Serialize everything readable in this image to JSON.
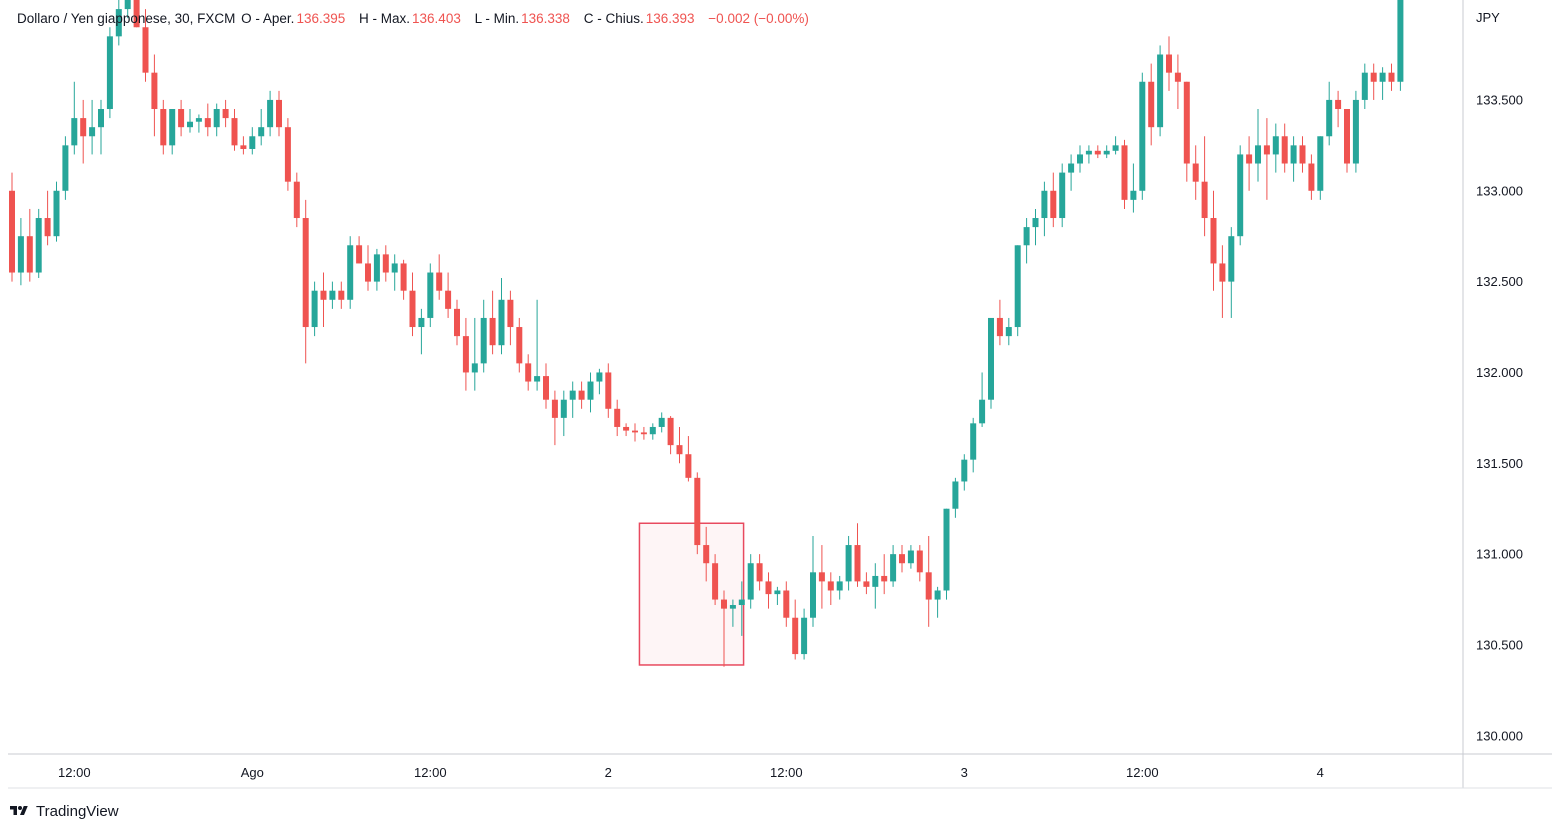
{
  "legend": {
    "symbol": "Dollaro / Yen giapponese, 30, FXCM",
    "open_label": "O - Aper.",
    "open_value": "136.395",
    "high_label": "H - Max.",
    "high_value": "136.403",
    "low_label": "L - Min.",
    "low_value": "136.338",
    "close_label": "C - Chius.",
    "close_value": "136.393",
    "change": "−0.002 (−0.00%)"
  },
  "currency": "JPY",
  "branding": {
    "name": "TradingView",
    "logo_icon": "tradingview-logo-icon"
  },
  "colors": {
    "up": "#26a69a",
    "down": "#ef5350",
    "box_stroke": "#e84a5f",
    "box_fill": "#fdecee"
  },
  "chart_data": {
    "type": "candlestick",
    "timeframe": "30",
    "y_axis": {
      "range": [
        129.9,
        134.05
      ],
      "ticks": [
        {
          "value": 133.5,
          "label": "133.500"
        },
        {
          "value": 133.0,
          "label": "133.000"
        },
        {
          "value": 132.5,
          "label": "132.500"
        },
        {
          "value": 132.0,
          "label": "132.000"
        },
        {
          "value": 131.5,
          "label": "131.500"
        },
        {
          "value": 131.0,
          "label": "131.000"
        },
        {
          "value": 130.5,
          "label": "130.500"
        },
        {
          "value": 130.0,
          "label": "130.000"
        }
      ]
    },
    "x_axis": {
      "bar_range": [
        0,
        162
      ],
      "ticks": [
        {
          "bar": 7,
          "label": "12:00"
        },
        {
          "bar": 27,
          "label": "Ago"
        },
        {
          "bar": 47,
          "label": "12:00"
        },
        {
          "bar": 67,
          "label": "2"
        },
        {
          "bar": 87,
          "label": "12:00"
        },
        {
          "bar": 107,
          "label": "3"
        },
        {
          "bar": 127,
          "label": "12:00"
        },
        {
          "bar": 147,
          "label": "4"
        }
      ]
    },
    "highlight_box": {
      "bar_from": 70.5,
      "bar_to": 82.2,
      "price_low": 130.39,
      "price_high": 131.17
    },
    "candles": [
      [
        133.0,
        133.1,
        132.5,
        132.55
      ],
      [
        132.55,
        132.85,
        132.48,
        132.75
      ],
      [
        132.75,
        132.9,
        132.5,
        132.55
      ],
      [
        132.55,
        132.9,
        132.52,
        132.85
      ],
      [
        132.85,
        133.0,
        132.7,
        132.75
      ],
      [
        132.75,
        133.05,
        132.72,
        133.0
      ],
      [
        133.0,
        133.3,
        132.95,
        133.25
      ],
      [
        133.25,
        133.6,
        133.2,
        133.4
      ],
      [
        133.4,
        133.5,
        133.15,
        133.3
      ],
      [
        133.3,
        133.5,
        133.2,
        133.35
      ],
      [
        133.35,
        133.5,
        133.2,
        133.45
      ],
      [
        133.45,
        133.9,
        133.4,
        133.85
      ],
      [
        133.85,
        134.1,
        133.8,
        134.0
      ],
      [
        134.0,
        134.1,
        133.95,
        134.05
      ],
      [
        134.05,
        134.08,
        133.9,
        133.9
      ],
      [
        133.9,
        134.0,
        133.6,
        133.65
      ],
      [
        133.65,
        133.75,
        133.3,
        133.45
      ],
      [
        133.45,
        133.5,
        133.2,
        133.25
      ],
      [
        133.25,
        133.45,
        133.2,
        133.45
      ],
      [
        133.45,
        133.5,
        133.3,
        133.35
      ],
      [
        133.35,
        133.45,
        133.32,
        133.38
      ],
      [
        133.38,
        133.42,
        133.32,
        133.4
      ],
      [
        133.4,
        133.48,
        133.3,
        133.35
      ],
      [
        133.35,
        133.48,
        133.3,
        133.45
      ],
      [
        133.45,
        133.5,
        133.35,
        133.4
      ],
      [
        133.4,
        133.45,
        133.22,
        133.25
      ],
      [
        133.25,
        133.3,
        133.2,
        133.23
      ],
      [
        133.23,
        133.35,
        133.2,
        133.3
      ],
      [
        133.3,
        133.45,
        133.25,
        133.35
      ],
      [
        133.35,
        133.55,
        133.3,
        133.5
      ],
      [
        133.5,
        133.55,
        133.3,
        133.35
      ],
      [
        133.35,
        133.4,
        133.0,
        133.05
      ],
      [
        133.05,
        133.1,
        132.8,
        132.85
      ],
      [
        132.85,
        132.95,
        132.05,
        132.25
      ],
      [
        132.25,
        132.5,
        132.2,
        132.45
      ],
      [
        132.45,
        132.55,
        132.25,
        132.4
      ],
      [
        132.4,
        132.5,
        132.35,
        132.45
      ],
      [
        132.45,
        132.5,
        132.35,
        132.4
      ],
      [
        132.4,
        132.75,
        132.35,
        132.7
      ],
      [
        132.7,
        132.75,
        132.6,
        132.6
      ],
      [
        132.6,
        132.7,
        132.45,
        132.5
      ],
      [
        132.5,
        132.68,
        132.45,
        132.65
      ],
      [
        132.65,
        132.7,
        132.5,
        132.55
      ],
      [
        132.55,
        132.65,
        132.45,
        132.6
      ],
      [
        132.6,
        132.62,
        132.4,
        132.45
      ],
      [
        132.45,
        132.55,
        132.2,
        132.25
      ],
      [
        132.25,
        132.35,
        132.1,
        132.3
      ],
      [
        132.3,
        132.6,
        132.25,
        132.55
      ],
      [
        132.55,
        132.65,
        132.4,
        132.45
      ],
      [
        132.45,
        132.55,
        132.3,
        132.35
      ],
      [
        132.35,
        132.4,
        132.15,
        132.2
      ],
      [
        132.2,
        132.3,
        131.9,
        132.0
      ],
      [
        132.0,
        132.3,
        131.9,
        132.05
      ],
      [
        132.05,
        132.4,
        132.0,
        132.3
      ],
      [
        132.3,
        132.45,
        132.1,
        132.15
      ],
      [
        132.15,
        132.52,
        132.1,
        132.4
      ],
      [
        132.4,
        132.45,
        132.15,
        132.25
      ],
      [
        132.25,
        132.3,
        132.0,
        132.05
      ],
      [
        132.05,
        132.1,
        131.9,
        131.95
      ],
      [
        131.95,
        132.4,
        131.9,
        131.98
      ],
      [
        131.98,
        132.05,
        131.8,
        131.85
      ],
      [
        131.85,
        131.9,
        131.6,
        131.75
      ],
      [
        131.75,
        131.9,
        131.65,
        131.85
      ],
      [
        131.85,
        131.95,
        131.75,
        131.9
      ],
      [
        131.9,
        131.95,
        131.8,
        131.85
      ],
      [
        131.85,
        132.0,
        131.78,
        131.95
      ],
      [
        131.95,
        132.02,
        131.88,
        132.0
      ],
      [
        132.0,
        132.05,
        131.75,
        131.8
      ],
      [
        131.8,
        131.85,
        131.65,
        131.7
      ],
      [
        131.7,
        131.72,
        131.65,
        131.68
      ],
      [
        131.68,
        131.72,
        131.62,
        131.67
      ],
      [
        131.67,
        131.7,
        131.63,
        131.66
      ],
      [
        131.66,
        131.72,
        131.63,
        131.7
      ],
      [
        131.7,
        131.78,
        131.67,
        131.75
      ],
      [
        131.75,
        131.76,
        131.55,
        131.6
      ],
      [
        131.6,
        131.7,
        131.5,
        131.55
      ],
      [
        131.55,
        131.65,
        131.4,
        131.42
      ],
      [
        131.42,
        131.45,
        131.0,
        131.05
      ],
      [
        131.05,
        131.15,
        130.85,
        130.95
      ],
      [
        130.95,
        131.0,
        130.72,
        130.75
      ],
      [
        130.75,
        130.8,
        130.38,
        130.7
      ],
      [
        130.7,
        130.75,
        130.6,
        130.72
      ],
      [
        130.72,
        130.85,
        130.55,
        130.75
      ],
      [
        130.75,
        131.0,
        130.7,
        130.95
      ],
      [
        130.95,
        131.0,
        130.8,
        130.85
      ],
      [
        130.85,
        130.9,
        130.7,
        130.78
      ],
      [
        130.78,
        130.82,
        130.72,
        130.8
      ],
      [
        130.8,
        130.85,
        130.6,
        130.65
      ],
      [
        130.65,
        130.75,
        130.42,
        130.45
      ],
      [
        130.45,
        130.7,
        130.42,
        130.65
      ],
      [
        130.65,
        131.1,
        130.6,
        130.9
      ],
      [
        130.9,
        131.05,
        130.7,
        130.85
      ],
      [
        130.85,
        130.9,
        130.72,
        130.8
      ],
      [
        130.8,
        130.88,
        130.75,
        130.85
      ],
      [
        130.85,
        131.1,
        130.8,
        131.05
      ],
      [
        131.05,
        131.17,
        130.82,
        130.85
      ],
      [
        130.85,
        130.9,
        130.78,
        130.82
      ],
      [
        130.82,
        130.95,
        130.7,
        130.88
      ],
      [
        130.88,
        131.0,
        130.78,
        130.85
      ],
      [
        130.85,
        131.05,
        130.82,
        131.0
      ],
      [
        131.0,
        131.05,
        130.9,
        130.95
      ],
      [
        130.95,
        131.05,
        130.92,
        131.02
      ],
      [
        131.02,
        131.05,
        130.85,
        130.9
      ],
      [
        130.9,
        131.1,
        130.6,
        130.75
      ],
      [
        130.75,
        130.82,
        130.65,
        130.8
      ],
      [
        130.8,
        131.25,
        130.75,
        131.25
      ],
      [
        131.25,
        131.42,
        131.2,
        131.4
      ],
      [
        131.4,
        131.55,
        131.35,
        131.52
      ],
      [
        131.52,
        131.75,
        131.45,
        131.72
      ],
      [
        131.72,
        132.0,
        131.7,
        131.85
      ],
      [
        131.85,
        132.3,
        131.8,
        132.3
      ],
      [
        132.3,
        132.4,
        132.15,
        132.2
      ],
      [
        132.2,
        132.3,
        132.15,
        132.25
      ],
      [
        132.25,
        132.7,
        132.2,
        132.7
      ],
      [
        132.7,
        132.85,
        132.6,
        132.8
      ],
      [
        132.8,
        132.9,
        132.7,
        132.85
      ],
      [
        132.85,
        133.05,
        132.75,
        133.0
      ],
      [
        133.0,
        133.1,
        132.8,
        132.85
      ],
      [
        132.85,
        133.15,
        132.8,
        133.1
      ],
      [
        133.1,
        133.2,
        133.0,
        133.15
      ],
      [
        133.15,
        133.25,
        133.1,
        133.2
      ],
      [
        133.2,
        133.25,
        133.15,
        133.22
      ],
      [
        133.22,
        133.25,
        133.18,
        133.2
      ],
      [
        133.2,
        133.25,
        133.18,
        133.22
      ],
      [
        133.22,
        133.3,
        133.2,
        133.25
      ],
      [
        133.25,
        133.28,
        132.9,
        132.95
      ],
      [
        132.95,
        133.15,
        132.88,
        133.0
      ],
      [
        133.0,
        133.65,
        132.95,
        133.6
      ],
      [
        133.6,
        133.7,
        133.25,
        133.35
      ],
      [
        133.35,
        133.8,
        133.3,
        133.75
      ],
      [
        133.75,
        133.85,
        133.55,
        133.65
      ],
      [
        133.65,
        133.75,
        133.45,
        133.6
      ],
      [
        133.6,
        133.6,
        133.05,
        133.15
      ],
      [
        133.15,
        133.25,
        132.95,
        133.05
      ],
      [
        133.05,
        133.3,
        132.75,
        132.85
      ],
      [
        132.85,
        133.0,
        132.45,
        132.6
      ],
      [
        132.6,
        132.7,
        132.3,
        132.5
      ],
      [
        132.5,
        132.8,
        132.3,
        132.75
      ],
      [
        132.75,
        133.25,
        132.7,
        133.2
      ],
      [
        133.2,
        133.3,
        133.0,
        133.15
      ],
      [
        133.15,
        133.45,
        133.05,
        133.25
      ],
      [
        133.25,
        133.4,
        132.95,
        133.2
      ],
      [
        133.2,
        133.37,
        133.1,
        133.3
      ],
      [
        133.3,
        133.37,
        133.1,
        133.15
      ],
      [
        133.15,
        133.3,
        133.05,
        133.25
      ],
      [
        133.25,
        133.3,
        133.1,
        133.15
      ],
      [
        133.15,
        133.2,
        132.95,
        133.0
      ],
      [
        133.0,
        133.3,
        132.95,
        133.3
      ],
      [
        133.3,
        133.6,
        133.25,
        133.5
      ],
      [
        133.5,
        133.55,
        133.35,
        133.45
      ],
      [
        133.45,
        133.45,
        133.1,
        133.15
      ],
      [
        133.15,
        133.55,
        133.1,
        133.5
      ],
      [
        133.5,
        133.7,
        133.45,
        133.65
      ],
      [
        133.65,
        133.7,
        133.5,
        133.6
      ],
      [
        133.6,
        133.68,
        133.5,
        133.65
      ],
      [
        133.65,
        133.7,
        133.55,
        133.6
      ],
      [
        133.6,
        134.2,
        133.55,
        134.1
      ]
    ]
  }
}
